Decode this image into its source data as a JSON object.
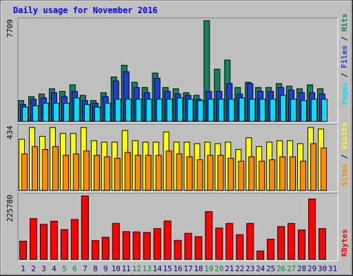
{
  "chart_data": [
    {
      "type": "bar",
      "panel": "top",
      "title": "Daily usage for November 2016",
      "ylabel_max": "7709",
      "categories": [
        "1",
        "2",
        "3",
        "4",
        "5",
        "6",
        "7",
        "8",
        "9",
        "10",
        "11",
        "12",
        "13",
        "14",
        "15",
        "16",
        "17",
        "18",
        "19",
        "20",
        "21",
        "22",
        "23",
        "24",
        "25",
        "26",
        "27",
        "28",
        "29",
        "30",
        "31"
      ],
      "weekend_days": [
        "5",
        "6",
        "12",
        "13",
        "19",
        "20",
        "26",
        "27"
      ],
      "ylim": [
        0,
        7709
      ],
      "legend": [
        "Pages",
        "Files",
        "Hits"
      ],
      "legend_separator": " / ",
      "series": [
        {
          "name": "Hits",
          "color": "#11845e",
          "values": [
            1600,
            1900,
            2100,
            2500,
            2300,
            2800,
            2000,
            1600,
            2200,
            3400,
            4300,
            3000,
            2600,
            3700,
            2600,
            2500,
            2200,
            2000,
            7709,
            4000,
            4700,
            2600,
            3000,
            2600,
            2600,
            2900,
            2700,
            2500,
            2800,
            2500,
            0
          ]
        },
        {
          "name": "Files",
          "color": "#1c3fdc",
          "values": [
            1300,
            1700,
            1800,
            2200,
            1900,
            2300,
            1600,
            1400,
            1900,
            3100,
            3800,
            2600,
            2200,
            3300,
            2300,
            2100,
            2000,
            1700,
            2300,
            2300,
            2900,
            2100,
            2900,
            2300,
            2300,
            2600,
            2400,
            2200,
            2200,
            2100,
            0
          ]
        },
        {
          "name": "Pages",
          "color": "#00e0ff",
          "values": [
            1100,
            1200,
            1400,
            1400,
            1400,
            1800,
            1300,
            1100,
            1400,
            1700,
            1700,
            1700,
            1700,
            1700,
            1700,
            1800,
            1700,
            1600,
            1700,
            1700,
            1700,
            1800,
            1700,
            1700,
            1700,
            2000,
            1700,
            1600,
            1700,
            1700,
            0
          ]
        }
      ]
    },
    {
      "type": "bar",
      "panel": "middle",
      "ylabel_max": "434",
      "ylim": [
        0,
        434
      ],
      "legend": [
        "Sites",
        "Visits"
      ],
      "legend_separator": " / ",
      "series": [
        {
          "name": "Visits",
          "color": "#ffff00",
          "values": [
            350,
            430,
            370,
            430,
            390,
            390,
            430,
            340,
            330,
            330,
            410,
            340,
            330,
            330,
            400,
            330,
            330,
            320,
            330,
            320,
            330,
            280,
            360,
            300,
            330,
            340,
            340,
            320,
            430,
            420,
            0
          ]
        },
        {
          "name": "Sites",
          "color": "#ff8c00",
          "values": [
            250,
            300,
            280,
            300,
            240,
            250,
            270,
            240,
            230,
            220,
            260,
            240,
            240,
            240,
            270,
            250,
            230,
            210,
            240,
            240,
            220,
            200,
            230,
            200,
            210,
            230,
            230,
            200,
            320,
            290,
            0
          ]
        }
      ]
    },
    {
      "type": "bar",
      "panel": "bottom",
      "ylabel_max": "225780",
      "ylim": [
        0,
        225780
      ],
      "legend": [
        "KBytes"
      ],
      "series": [
        {
          "name": "KBytes",
          "color": "#ff0000",
          "values": [
            65000,
            145000,
            125000,
            136000,
            106000,
            142000,
            225780,
            67000,
            79000,
            128000,
            99000,
            98000,
            96000,
            110000,
            137000,
            68000,
            93000,
            81000,
            170000,
            112000,
            128000,
            88000,
            128000,
            30000,
            72000,
            117000,
            128000,
            105000,
            215000,
            110000,
            0
          ]
        }
      ]
    }
  ],
  "colors": {
    "background": "#c0c0c0",
    "title": "#0000ff",
    "weekday_label": "#000080",
    "weekend_label": "#00824a"
  }
}
